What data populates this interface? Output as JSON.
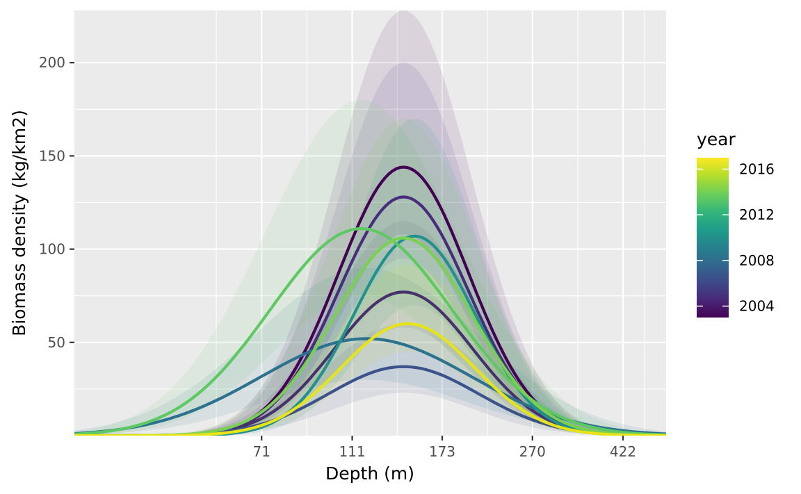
{
  "chart_data": {
    "type": "line",
    "xlabel": "Depth (m)",
    "ylabel": "Biomass density (kg/km2)",
    "x_scale": "log",
    "x_ticks": [
      71,
      111,
      173,
      270,
      422
    ],
    "y_ticks": [
      50,
      100,
      150,
      200
    ],
    "y_range": [
      0,
      228
    ],
    "x_range": [
      28.2,
      522
    ],
    "grid": true,
    "legend": {
      "title": "year",
      "position": "right",
      "type": "colorbar",
      "range": [
        2003,
        2017
      ],
      "labels": [
        2004,
        2008,
        2012,
        2016
      ],
      "palette": [
        "#440154",
        "#482878",
        "#3e4a89",
        "#31688e",
        "#26828e",
        "#1f9e89",
        "#35b779",
        "#6ece58",
        "#b5de2b",
        "#fde725"
      ]
    },
    "series": [
      {
        "year": 2003,
        "color": "#440154",
        "peak_depth": 143,
        "peak_density": 144,
        "sd_log": 0.32,
        "ci_lower_peak": 108,
        "ci_upper_peak": 228
      },
      {
        "year": 2005,
        "color": "#472d7b",
        "peak_depth": 143,
        "peak_density": 128,
        "sd_log": 0.32,
        "ci_lower_peak": 95,
        "ci_upper_peak": 200
      },
      {
        "year": 2006,
        "color": "#47306e",
        "peak_depth": 143,
        "peak_density": 77,
        "sd_log": 0.34,
        "ci_lower_peak": 58,
        "ci_upper_peak": 115
      },
      {
        "year": 2007,
        "color": "#3b528b",
        "peak_depth": 143,
        "peak_density": 37,
        "sd_log": 0.37,
        "ci_lower_peak": 23,
        "ci_upper_peak": 60
      },
      {
        "year": 2008,
        "color": "#2c728e",
        "peak_depth": 119,
        "peak_density": 52,
        "sd_log": 0.52,
        "ci_lower_peak": 30,
        "ci_upper_peak": 90
      },
      {
        "year": 2010,
        "color": "#21918c",
        "peak_depth": 151,
        "peak_density": 107,
        "sd_log": 0.3,
        "ci_lower_peak": 70,
        "ci_upper_peak": 170
      },
      {
        "year": 2012,
        "color": "#5ec962",
        "peak_depth": 116,
        "peak_density": 111,
        "sd_log": 0.45,
        "ci_lower_peak": 75,
        "ci_upper_peak": 180
      },
      {
        "year": 2013,
        "color": "#7ad151",
        "peak_depth": 143,
        "peak_density": 106,
        "sd_log": 0.34,
        "ci_lower_peak": 75,
        "ci_upper_peak": 170
      },
      {
        "year": 2016,
        "color": "#e6e419",
        "peak_depth": 146,
        "peak_density": 60,
        "sd_log": 0.33,
        "ci_lower_peak": 45,
        "ci_upper_peak": 92
      }
    ]
  }
}
